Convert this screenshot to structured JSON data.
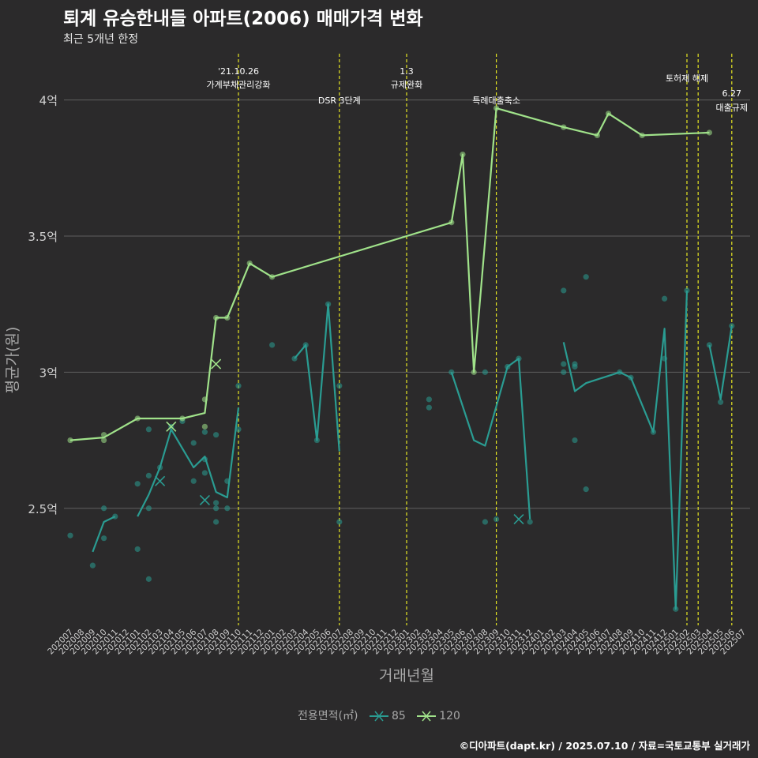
{
  "title": "퇴계 유승한내들 아파트(2006) 매매가격 변화",
  "subtitle": "최근 5개년 한정",
  "caption": "©디아파트(dapt.kr) / 2025.07.10 / 자료=국토교통부 실거래가",
  "colors": {
    "background": "#2b2a2b",
    "grid": "#5f5f5f",
    "s85": "#2a9c92",
    "s120": "#a0e28a",
    "event": "#e7e722"
  },
  "chart_data": {
    "type": "line",
    "xlabel": "거래년월",
    "ylabel": "평균가(원)",
    "legend_title": "전용면적(㎡)",
    "legend_position": "bottom",
    "grid": true,
    "x_months": [
      "202007",
      "202008",
      "202009",
      "202010",
      "202011",
      "202012",
      "202101",
      "202102",
      "202103",
      "202104",
      "202105",
      "202106",
      "202107",
      "202108",
      "202109",
      "202110",
      "202111",
      "202112",
      "202201",
      "202202",
      "202203",
      "202204",
      "202205",
      "202206",
      "202207",
      "202208",
      "202209",
      "202210",
      "202211",
      "202212",
      "202301",
      "202302",
      "202303",
      "202304",
      "202305",
      "202306",
      "202307",
      "202308",
      "202309",
      "202310",
      "202311",
      "202312",
      "202401",
      "202402",
      "202403",
      "202404",
      "202405",
      "202406",
      "202407",
      "202408",
      "202409",
      "202410",
      "202411",
      "202412",
      "202501",
      "202502",
      "202503",
      "202504",
      "202505",
      "202506",
      "202507"
    ],
    "ylim": [
      2.07,
      4.17
    ],
    "y_ticks": [
      2.5,
      3.0,
      3.5,
      4.0
    ],
    "y_tick_labels": [
      "2.5억",
      "3억",
      "3.5억",
      "4억"
    ],
    "series": [
      {
        "name": "85",
        "segments": [
          [
            [
              "202009",
              2.34
            ],
            [
              "202010",
              2.45
            ],
            [
              "202011",
              2.47
            ]
          ],
          [
            [
              "202101",
              2.47
            ],
            [
              "202102",
              2.55
            ],
            [
              "202103",
              2.65
            ],
            [
              "202104",
              2.79
            ],
            [
              "202105",
              2.72
            ],
            [
              "202106",
              2.65
            ],
            [
              "202107",
              2.69
            ],
            [
              "202108",
              2.56
            ],
            [
              "202109",
              2.54
            ],
            [
              "202110",
              2.87
            ]
          ],
          [
            [
              "202203",
              3.05
            ],
            [
              "202204",
              3.1
            ],
            [
              "202205",
              2.75
            ],
            [
              "202206",
              3.25
            ],
            [
              "202207",
              2.71
            ]
          ],
          [
            [
              "202305",
              3.0
            ],
            [
              "202307",
              2.75
            ],
            [
              "202308",
              2.73
            ],
            [
              "202310",
              3.02
            ],
            [
              "202311",
              3.05
            ],
            [
              "202312",
              2.46
            ]
          ],
          [
            [
              "202403",
              3.11
            ],
            [
              "202404",
              2.93
            ],
            [
              "202405",
              2.96
            ],
            [
              "202408",
              3.0
            ],
            [
              "202409",
              2.98
            ],
            [
              "202411",
              2.78
            ],
            [
              "202412",
              3.16
            ],
            [
              "202501",
              2.13
            ],
            [
              "202502",
              3.3
            ]
          ],
          [
            [
              "202504",
              3.1
            ],
            [
              "202505",
              2.9
            ],
            [
              "202506",
              3.17
            ]
          ]
        ],
        "points": [
          [
            "202007",
            2.4
          ],
          [
            "202009",
            2.29
          ],
          [
            "202010",
            2.5
          ],
          [
            "202010",
            2.39
          ],
          [
            "202011",
            2.47
          ],
          [
            "202101",
            2.59
          ],
          [
            "202101",
            2.35
          ],
          [
            "202102",
            2.79
          ],
          [
            "202102",
            2.62
          ],
          [
            "202102",
            2.5
          ],
          [
            "202102",
            2.24
          ],
          [
            "202103",
            2.65
          ],
          [
            "202104",
            2.8
          ],
          [
            "202105",
            2.82
          ],
          [
            "202106",
            2.74
          ],
          [
            "202106",
            2.6
          ],
          [
            "202107",
            2.78
          ],
          [
            "202107",
            2.68
          ],
          [
            "202107",
            2.63
          ],
          [
            "202108",
            2.77
          ],
          [
            "202108",
            2.52
          ],
          [
            "202108",
            2.5
          ],
          [
            "202108",
            2.45
          ],
          [
            "202109",
            2.6
          ],
          [
            "202109",
            2.5
          ],
          [
            "202110",
            2.95
          ],
          [
            "202110",
            2.79
          ],
          [
            "202201",
            3.1
          ],
          [
            "202203",
            3.05
          ],
          [
            "202204",
            3.1
          ],
          [
            "202205",
            2.75
          ],
          [
            "202206",
            3.25
          ],
          [
            "202207",
            2.95
          ],
          [
            "202207",
            2.45
          ],
          [
            "202303",
            2.9
          ],
          [
            "202303",
            2.87
          ],
          [
            "202305",
            3.0
          ],
          [
            "202308",
            3.0
          ],
          [
            "202308",
            2.45
          ],
          [
            "202309",
            2.46
          ],
          [
            "202310",
            3.02
          ],
          [
            "202311",
            3.05
          ],
          [
            "202312",
            2.45
          ],
          [
            "202403",
            3.3
          ],
          [
            "202403",
            3.03
          ],
          [
            "202403",
            3.0
          ],
          [
            "202404",
            3.03
          ],
          [
            "202404",
            3.02
          ],
          [
            "202404",
            2.75
          ],
          [
            "202405",
            3.35
          ],
          [
            "202405",
            2.57
          ],
          [
            "202408",
            3.0
          ],
          [
            "202409",
            2.98
          ],
          [
            "202411",
            2.78
          ],
          [
            "202412",
            3.27
          ],
          [
            "202412",
            3.05
          ],
          [
            "202501",
            2.13
          ],
          [
            "202502",
            3.3
          ],
          [
            "202504",
            3.1
          ],
          [
            "202505",
            2.89
          ],
          [
            "202506",
            3.17
          ]
        ],
        "cancelled": [
          [
            "202103",
            2.6
          ],
          [
            "202107",
            2.53
          ],
          [
            "202311",
            2.46
          ]
        ]
      },
      {
        "name": "120",
        "segments": [
          [
            [
              "202007",
              2.75
            ],
            [
              "202010",
              2.76
            ],
            [
              "202101",
              2.83
            ],
            [
              "202105",
              2.83
            ],
            [
              "202107",
              2.85
            ],
            [
              "202108",
              3.2
            ],
            [
              "202109",
              3.2
            ],
            [
              "202111",
              3.4
            ],
            [
              "202201",
              3.35
            ],
            [
              "202305",
              3.55
            ],
            [
              "202306",
              3.8
            ],
            [
              "202307",
              3.0
            ],
            [
              "202309",
              3.97
            ],
            [
              "202403",
              3.9
            ],
            [
              "202406",
              3.87
            ],
            [
              "202407",
              3.95
            ],
            [
              "202410",
              3.87
            ],
            [
              "202504",
              3.88
            ]
          ]
        ],
        "points": [
          [
            "202007",
            2.75
          ],
          [
            "202010",
            2.77
          ],
          [
            "202010",
            2.75
          ],
          [
            "202101",
            2.83
          ],
          [
            "202105",
            2.83
          ],
          [
            "202107",
            2.9
          ],
          [
            "202107",
            2.8
          ],
          [
            "202108",
            3.2
          ],
          [
            "202109",
            3.2
          ],
          [
            "202111",
            3.4
          ],
          [
            "202201",
            3.35
          ],
          [
            "202305",
            3.55
          ],
          [
            "202306",
            3.8
          ],
          [
            "202307",
            3.0
          ],
          [
            "202309",
            3.97
          ],
          [
            "202403",
            3.9
          ],
          [
            "202406",
            3.87
          ],
          [
            "202407",
            3.95
          ],
          [
            "202410",
            3.87
          ],
          [
            "202504",
            3.88
          ]
        ],
        "cancelled": [
          [
            "202104",
            2.8
          ],
          [
            "202108",
            3.03
          ]
        ]
      }
    ],
    "events": [
      {
        "month": "202110",
        "label1": "'21.10.26",
        "label2": "가계부채관리강화",
        "row": "top"
      },
      {
        "month": "202207",
        "label1": "DSR 3단계",
        "label2": "",
        "row": "low"
      },
      {
        "month": "202301",
        "label1": "1.3",
        "label2": "규제완화",
        "row": "top"
      },
      {
        "month": "202309",
        "label1": "특례대출축소",
        "label2": "",
        "row": "low"
      },
      {
        "month": "202502",
        "label1": "토허제 해제",
        "label2": "",
        "row": "mid"
      },
      {
        "month": "202503",
        "label1": "",
        "label2": "",
        "row": "none"
      },
      {
        "month": "202506",
        "label1": "6.27",
        "label2": "대출규제",
        "row": "right"
      }
    ]
  }
}
